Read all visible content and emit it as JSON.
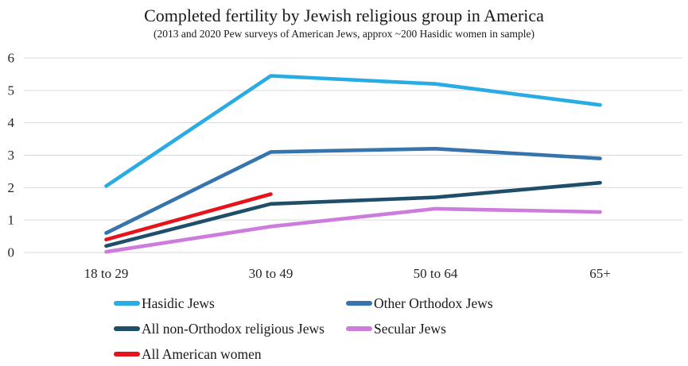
{
  "chart_data": {
    "type": "line",
    "title": "Completed fertility by Jewish religious group in America",
    "subtitle": "(2013 and 2020 Pew surveys of American Jews, approx ~200 Hasidic women in sample)",
    "categories": [
      "18 to 29",
      "30 to 49",
      "50 to 64",
      "65+"
    ],
    "series": [
      {
        "name": "Hasidic Jews",
        "color": "#29ACE3",
        "values": [
          2.05,
          5.45,
          5.2,
          4.55
        ]
      },
      {
        "name": "Other Orthodox Jews",
        "color": "#3574AC",
        "values": [
          0.6,
          3.1,
          3.2,
          2.9
        ]
      },
      {
        "name": "All non-Orthodox religious Jews",
        "color": "#1F4E6B",
        "values": [
          0.2,
          1.5,
          1.7,
          2.15
        ]
      },
      {
        "name": "Secular Jews",
        "color": "#CD7CDE",
        "values": [
          0.02,
          0.8,
          1.35,
          1.25
        ]
      },
      {
        "name": "All American women",
        "color": "#E8131A",
        "values": [
          0.4,
          1.8,
          null,
          null
        ]
      }
    ],
    "yticks": [
      0,
      1,
      2,
      3,
      4,
      5,
      6
    ],
    "ylim": [
      0,
      6
    ],
    "grid": "horizontal",
    "gridline_color": "#D9D9D9",
    "axis_text_color": "#262626",
    "legend_position": "bottom",
    "legend_columns": 2
  }
}
